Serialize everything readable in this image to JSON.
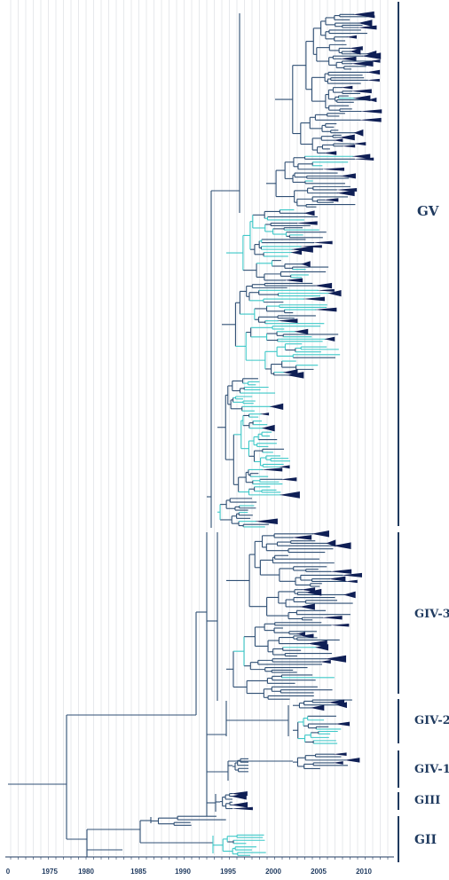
{
  "figure": {
    "colors": {
      "branch_dark": "#2f4f74",
      "branch_teal": "#3cc8c8",
      "clade_fill": "#0f1f55",
      "grid": "#cfd3d8",
      "axis": "#1f3a5f"
    }
  },
  "axis": {
    "tick_labels": [
      "0",
      "1975",
      "1980",
      "1985",
      "1990",
      "1995",
      "2000",
      "2005",
      "2010"
    ],
    "range": [
      1966,
      2013
    ]
  },
  "genotypes": [
    {
      "label": "GV"
    },
    {
      "label": "GIV-3"
    },
    {
      "label": "GIV-2"
    },
    {
      "label": "GIV-1"
    },
    {
      "label": "GIII"
    },
    {
      "label": "GII"
    }
  ]
}
